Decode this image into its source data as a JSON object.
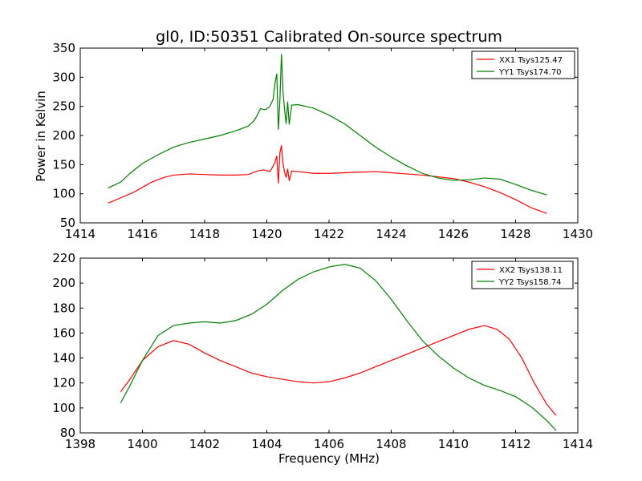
{
  "figure": {
    "title": "gl0, ID:50351 Calibrated On-source spectrum",
    "shared_ylabel": "Power in Kelvin",
    "shared_xlabel": "Frequency (MHz)"
  },
  "chart_data": [
    {
      "type": "line",
      "title": "gl0, ID:50351 Calibrated On-source spectrum",
      "ylabel": "Power in Kelvin",
      "xlabel": "",
      "xlim": [
        1414,
        1430
      ],
      "ylim": [
        50,
        350
      ],
      "xticks": [
        1414,
        1416,
        1418,
        1420,
        1422,
        1424,
        1426,
        1428,
        1430
      ],
      "yticks": [
        50,
        100,
        150,
        200,
        250,
        300,
        350
      ],
      "grid": false,
      "legend_position": "top-right",
      "series": [
        {
          "name": "XX1 Tsys125.47",
          "color": "#ff0000",
          "points": [
            [
              1414.9,
              84
            ],
            [
              1415.3,
              93
            ],
            [
              1415.7,
              102
            ],
            [
              1416.0,
              111
            ],
            [
              1416.3,
              120
            ],
            [
              1416.7,
              128
            ],
            [
              1417.0,
              132
            ],
            [
              1417.5,
              134
            ],
            [
              1418.0,
              133
            ],
            [
              1418.5,
              132
            ],
            [
              1419.0,
              132
            ],
            [
              1419.4,
              133
            ],
            [
              1419.7,
              139
            ],
            [
              1419.9,
              141
            ],
            [
              1420.1,
              138
            ],
            [
              1420.25,
              152
            ],
            [
              1420.32,
              165
            ],
            [
              1420.37,
              118
            ],
            [
              1420.42,
              170
            ],
            [
              1420.47,
              183
            ],
            [
              1420.52,
              152
            ],
            [
              1420.57,
              137
            ],
            [
              1420.62,
              128
            ],
            [
              1420.67,
              143
            ],
            [
              1420.72,
              122
            ],
            [
              1420.8,
              139
            ],
            [
              1421.0,
              138
            ],
            [
              1421.5,
              135
            ],
            [
              1422.0,
              135
            ],
            [
              1422.5,
              136
            ],
            [
              1423.0,
              137
            ],
            [
              1423.5,
              138
            ],
            [
              1424.0,
              136
            ],
            [
              1424.5,
              134
            ],
            [
              1425.0,
              132
            ],
            [
              1425.5,
              129
            ],
            [
              1426.0,
              126
            ],
            [
              1426.5,
              120
            ],
            [
              1427.0,
              112
            ],
            [
              1427.5,
              102
            ],
            [
              1428.0,
              90
            ],
            [
              1428.5,
              76
            ],
            [
              1429.0,
              66
            ]
          ]
        },
        {
          "name": "YY1 Tsys174.70",
          "color": "#008000",
          "points": [
            [
              1414.9,
              110
            ],
            [
              1415.3,
              120
            ],
            [
              1415.6,
              135
            ],
            [
              1416.0,
              152
            ],
            [
              1416.5,
              167
            ],
            [
              1417.0,
              180
            ],
            [
              1417.5,
              188
            ],
            [
              1418.0,
              194
            ],
            [
              1418.5,
              200
            ],
            [
              1419.0,
              208
            ],
            [
              1419.4,
              216
            ],
            [
              1419.6,
              226
            ],
            [
              1419.8,
              246
            ],
            [
              1419.95,
              244
            ],
            [
              1420.1,
              250
            ],
            [
              1420.2,
              262
            ],
            [
              1420.27,
              292
            ],
            [
              1420.32,
              306
            ],
            [
              1420.37,
              210
            ],
            [
              1420.42,
              260
            ],
            [
              1420.47,
              340
            ],
            [
              1420.52,
              275
            ],
            [
              1420.57,
              245
            ],
            [
              1420.62,
              220
            ],
            [
              1420.67,
              258
            ],
            [
              1420.72,
              219
            ],
            [
              1420.8,
              252
            ],
            [
              1421.0,
              253
            ],
            [
              1421.5,
              247
            ],
            [
              1422.0,
              235
            ],
            [
              1422.5,
              220
            ],
            [
              1423.0,
              200
            ],
            [
              1423.5,
              180
            ],
            [
              1424.0,
              163
            ],
            [
              1424.5,
              148
            ],
            [
              1425.0,
              135
            ],
            [
              1425.5,
              127
            ],
            [
              1426.0,
              123
            ],
            [
              1426.5,
              124
            ],
            [
              1427.0,
              127
            ],
            [
              1427.5,
              125
            ],
            [
              1428.0,
              116
            ],
            [
              1428.5,
              106
            ],
            [
              1429.0,
              98
            ]
          ]
        }
      ]
    },
    {
      "type": "line",
      "title": "",
      "ylabel": "",
      "xlabel": "Frequency (MHz)",
      "xlim": [
        1398,
        1414
      ],
      "ylim": [
        80,
        220
      ],
      "xticks": [
        1398,
        1400,
        1402,
        1404,
        1406,
        1408,
        1410,
        1412,
        1414
      ],
      "yticks": [
        80,
        100,
        120,
        140,
        160,
        180,
        200,
        220
      ],
      "grid": false,
      "legend_position": "top-right",
      "series": [
        {
          "name": "XX2 Tsys138.11",
          "color": "#ff0000",
          "points": [
            [
              1399.3,
              113
            ],
            [
              1399.6,
              123
            ],
            [
              1400.0,
              138
            ],
            [
              1400.5,
              149
            ],
            [
              1401.0,
              154
            ],
            [
              1401.5,
              151
            ],
            [
              1402.0,
              144
            ],
            [
              1402.5,
              138
            ],
            [
              1403.0,
              133
            ],
            [
              1403.5,
              128
            ],
            [
              1404.0,
              125
            ],
            [
              1404.5,
              123
            ],
            [
              1405.0,
              121
            ],
            [
              1405.5,
              120
            ],
            [
              1406.0,
              121
            ],
            [
              1406.5,
              124
            ],
            [
              1407.0,
              128
            ],
            [
              1407.5,
              133
            ],
            [
              1408.0,
              138
            ],
            [
              1408.5,
              143
            ],
            [
              1409.0,
              148
            ],
            [
              1409.5,
              153
            ],
            [
              1410.0,
              158
            ],
            [
              1410.5,
              163
            ],
            [
              1411.0,
              166
            ],
            [
              1411.4,
              163
            ],
            [
              1411.8,
              155
            ],
            [
              1412.2,
              140
            ],
            [
              1412.6,
              120
            ],
            [
              1413.0,
              103
            ],
            [
              1413.3,
              94
            ]
          ]
        },
        {
          "name": "YY2 Tsys158.74",
          "color": "#008000",
          "points": [
            [
              1399.3,
              104
            ],
            [
              1399.6,
              118
            ],
            [
              1400.0,
              138
            ],
            [
              1400.5,
              158
            ],
            [
              1401.0,
              166
            ],
            [
              1401.5,
              168
            ],
            [
              1402.0,
              169
            ],
            [
              1402.5,
              168
            ],
            [
              1403.0,
              170
            ],
            [
              1403.5,
              175
            ],
            [
              1404.0,
              183
            ],
            [
              1404.5,
              194
            ],
            [
              1405.0,
              203
            ],
            [
              1405.5,
              209
            ],
            [
              1406.0,
              213
            ],
            [
              1406.5,
              215
            ],
            [
              1407.0,
              212
            ],
            [
              1407.5,
              202
            ],
            [
              1408.0,
              187
            ],
            [
              1408.5,
              170
            ],
            [
              1409.0,
              154
            ],
            [
              1409.5,
              142
            ],
            [
              1410.0,
              132
            ],
            [
              1410.5,
              124
            ],
            [
              1411.0,
              118
            ],
            [
              1411.5,
              114
            ],
            [
              1412.0,
              109
            ],
            [
              1412.5,
              101
            ],
            [
              1413.0,
              90
            ],
            [
              1413.3,
              82
            ]
          ]
        }
      ]
    }
  ]
}
